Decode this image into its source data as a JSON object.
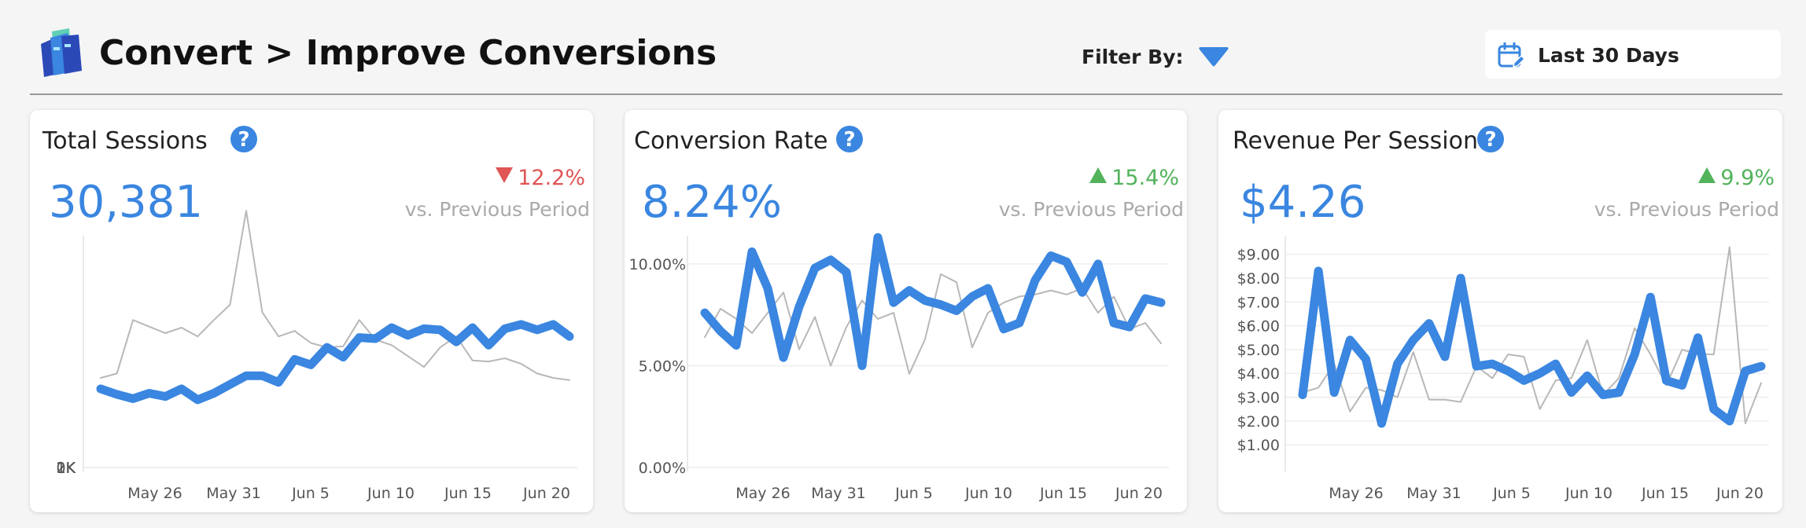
{
  "header": {
    "title": "Convert > Improve Conversions",
    "filter_label": "Filter By:",
    "date_range": "Last 30 Days"
  },
  "icons": {
    "logo": "book-stack-logo",
    "filter": "caret-down-icon",
    "date": "calendar-edit-icon",
    "help": "question-circle-icon"
  },
  "colors": {
    "current": "#3a86e0",
    "previous": "#b8b8b8",
    "up": "#52b35b",
    "down": "#e05555"
  },
  "cards": [
    {
      "title": "Total Sessions",
      "value": "30,381",
      "change": "12.2%",
      "direction": "down",
      "comparison": "vs. Previous Period"
    },
    {
      "title": "Conversion Rate",
      "value": "8.24%",
      "change": "15.4%",
      "direction": "up",
      "comparison": "vs. Previous Period"
    },
    {
      "title": "Revenue Per Session",
      "value": "$4.26",
      "change": "9.9%",
      "direction": "up",
      "comparison": "vs. Previous Period"
    }
  ],
  "chart_data": [
    {
      "type": "line",
      "x_ticks": [
        "May 26",
        "May 31",
        "Jun 5",
        "Jun 10",
        "Jun 15",
        "Jun 20"
      ],
      "y_ticks": [
        "0K",
        "1K",
        "2K"
      ],
      "ylim": [
        0,
        2050
      ],
      "series": [
        {
          "values": [
            720,
            670,
            630,
            680,
            650,
            720,
            620,
            680,
            760,
            840,
            840,
            780,
            990,
            940,
            1100,
            1010,
            1190,
            1180,
            1280,
            1210,
            1270,
            1260,
            1150,
            1280,
            1120,
            1270,
            1310,
            1260,
            1310,
            1200
          ]
        },
        {
          "values": [
            820,
            860,
            1350,
            1290,
            1230,
            1280,
            1200,
            1350,
            1490,
            2350,
            1420,
            1200,
            1250,
            1140,
            1100,
            1110,
            1350,
            1170,
            1120,
            1020,
            920,
            1100,
            1200,
            980,
            970,
            1000,
            950,
            860,
            820,
            800
          ]
        }
      ]
    },
    {
      "type": "line",
      "x_ticks": [
        "May 26",
        "May 31",
        "Jun 5",
        "Jun 10",
        "Jun 15",
        "Jun 20"
      ],
      "y_ticks": [
        "0.00%",
        "5.00%",
        "10.00%"
      ],
      "ylim": [
        0,
        11
      ],
      "series": [
        {
          "values": [
            7.6,
            6.7,
            6.0,
            10.6,
            8.8,
            5.4,
            7.9,
            9.8,
            10.2,
            9.6,
            5.0,
            11.3,
            8.1,
            8.7,
            8.2,
            8.0,
            7.7,
            8.4,
            8.8,
            6.8,
            7.1,
            9.2,
            10.4,
            10.1,
            8.6,
            10.0,
            7.1,
            6.9,
            8.3,
            8.1
          ]
        },
        {
          "values": [
            6.4,
            7.8,
            7.3,
            6.6,
            7.6,
            8.6,
            5.8,
            7.4,
            5.0,
            6.9,
            8.2,
            7.3,
            7.6,
            4.6,
            6.3,
            9.5,
            9.1,
            5.9,
            7.6,
            8.1,
            8.4,
            8.5,
            8.7,
            8.5,
            8.8,
            7.6,
            8.4,
            6.8,
            7.1,
            6.1
          ]
        }
      ]
    },
    {
      "type": "line",
      "x_ticks": [
        "May 26",
        "May 31",
        "Jun 5",
        "Jun 10",
        "Jun 15",
        "Jun 20"
      ],
      "y_ticks": [
        "$1.00",
        "$2.00",
        "$3.00",
        "$4.00",
        "$5.00",
        "$6.00",
        "$7.00",
        "$8.00",
        "$9.00"
      ],
      "ylim": [
        0.05,
        9.45
      ],
      "series": [
        {
          "values": [
            3.1,
            8.3,
            3.2,
            5.4,
            4.6,
            1.9,
            4.4,
            5.4,
            6.1,
            4.7,
            8.0,
            4.3,
            4.4,
            4.1,
            3.7,
            4.0,
            4.4,
            3.2,
            3.9,
            3.1,
            3.2,
            4.8,
            7.2,
            3.7,
            3.5,
            5.5,
            2.5,
            2.0,
            4.1,
            4.3
          ]
        },
        {
          "values": [
            3.2,
            3.4,
            4.4,
            2.4,
            3.4,
            3.3,
            3.0,
            4.9,
            2.9,
            2.9,
            2.8,
            4.3,
            3.8,
            4.8,
            4.7,
            2.5,
            3.7,
            3.8,
            5.4,
            3.1,
            3.8,
            5.9,
            4.8,
            3.5,
            5.0,
            4.8,
            4.8,
            9.3,
            1.9,
            3.6
          ]
        }
      ]
    }
  ]
}
